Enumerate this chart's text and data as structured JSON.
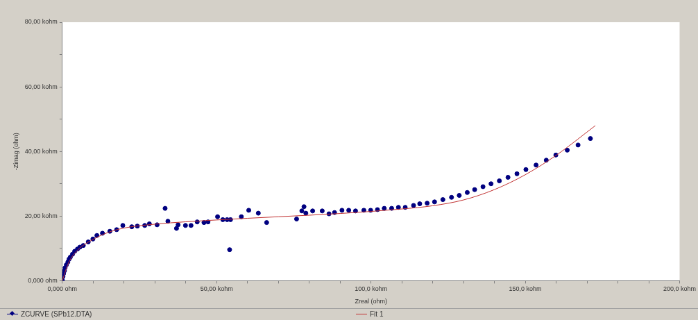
{
  "chart_data": {
    "type": "scatter",
    "xlabel": "Zreal (ohm)",
    "ylabel": "-Zimag (ohm)",
    "xlim": [
      0,
      200
    ],
    "ylim": [
      0,
      80
    ],
    "xticks": [
      {
        "value": 0,
        "label": "0,000 ohm"
      },
      {
        "value": 10,
        "label": null
      },
      {
        "value": 20,
        "label": null
      },
      {
        "value": 30,
        "label": null
      },
      {
        "value": 40,
        "label": null
      },
      {
        "value": 50,
        "label": "50,00 kohm"
      },
      {
        "value": 60,
        "label": null
      },
      {
        "value": 70,
        "label": null
      },
      {
        "value": 80,
        "label": null
      },
      {
        "value": 90,
        "label": null
      },
      {
        "value": 100,
        "label": "100,0 kohm"
      },
      {
        "value": 110,
        "label": null
      },
      {
        "value": 120,
        "label": null
      },
      {
        "value": 130,
        "label": null
      },
      {
        "value": 140,
        "label": null
      },
      {
        "value": 150,
        "label": "150,0 kohm"
      },
      {
        "value": 160,
        "label": null
      },
      {
        "value": 170,
        "label": null
      },
      {
        "value": 180,
        "label": null
      },
      {
        "value": 190,
        "label": null
      },
      {
        "value": 200,
        "label": "200,0 kohm"
      }
    ],
    "yticks": [
      {
        "value": 0,
        "label": "0,000 ohm"
      },
      {
        "value": 10,
        "label": null
      },
      {
        "value": 20,
        "label": "20,00 kohm"
      },
      {
        "value": 30,
        "label": null
      },
      {
        "value": 40,
        "label": "40,00 kohm"
      },
      {
        "value": 50,
        "label": null
      },
      {
        "value": 60,
        "label": "60,00 kohm"
      },
      {
        "value": 70,
        "label": null
      },
      {
        "value": 80,
        "label": "80,00 kohm"
      }
    ],
    "grid": false,
    "legend": "bottom",
    "series": [
      {
        "name": "ZCURVE (SPb12.DTA)",
        "color": "#000080",
        "marker": "circle",
        "x": [
          0,
          0.2,
          0.4,
          0.7,
          0.9,
          1.3,
          1.8,
          2.2,
          2.6,
          3.3,
          4.0,
          4.9,
          5.7,
          6.8,
          8.4,
          9.9,
          11.2,
          13.0,
          15.4,
          17.6,
          19.6,
          22.5,
          24.3,
          26.7,
          28.2,
          30.7,
          33.3,
          34.2,
          37.0,
          37.5,
          39.9,
          41.7,
          43.7,
          45.9,
          47.2,
          50.3,
          52.0,
          53.4,
          54.5,
          54.2,
          58.0,
          60.4,
          63.5,
          66.2,
          75.9,
          77.6,
          78.3,
          78.9,
          81.1,
          84.2,
          86.4,
          88.2,
          90.6,
          92.8,
          95.0,
          97.7,
          99.9,
          102.1,
          104.3,
          106.7,
          108.9,
          111.1,
          113.8,
          115.8,
          118.2,
          120.6,
          123.3,
          126.1,
          128.6,
          131.2,
          133.6,
          136.3,
          138.9,
          141.6,
          144.4,
          147.3,
          150.2,
          153.5,
          156.8,
          159.9,
          163.6,
          167.1,
          171.1
        ],
        "values": [
          0.2,
          1.3,
          2.2,
          3.1,
          4.0,
          4.9,
          5.8,
          6.7,
          7.3,
          8.2,
          9.1,
          9.8,
          10.4,
          10.9,
          12.0,
          12.9,
          14.0,
          14.7,
          15.3,
          15.8,
          17.1,
          16.7,
          16.9,
          17.1,
          17.6,
          17.3,
          22.4,
          18.4,
          16.2,
          17.3,
          17.1,
          17.1,
          18.2,
          18.0,
          18.2,
          19.8,
          18.9,
          18.9,
          18.9,
          9.6,
          19.8,
          21.8,
          20.9,
          18.0,
          19.1,
          21.6,
          22.9,
          20.9,
          21.6,
          21.6,
          20.7,
          21.1,
          21.8,
          21.8,
          21.6,
          21.8,
          21.8,
          22.0,
          22.4,
          22.4,
          22.7,
          22.7,
          23.3,
          23.8,
          24.0,
          24.4,
          25.1,
          25.8,
          26.4,
          27.3,
          28.2,
          29.1,
          30.0,
          30.9,
          32.0,
          33.1,
          34.4,
          35.8,
          37.3,
          38.9,
          40.4,
          42.0,
          44.0
        ]
      },
      {
        "name": "Fit 1",
        "color": "#c03030",
        "type": "line",
        "marker": "none",
        "line_style": "solid",
        "x": [
          0,
          2,
          5,
          10,
          15,
          20,
          30,
          50,
          70,
          90,
          110,
          120,
          130,
          140,
          150,
          160,
          172.7
        ],
        "values": [
          0,
          5.5,
          9.5,
          12.8,
          15.0,
          16.3,
          17.5,
          18.8,
          19.8,
          20.8,
          22.2,
          23.2,
          25.0,
          28.2,
          32.8,
          38.8,
          48.0
        ]
      }
    ]
  }
}
